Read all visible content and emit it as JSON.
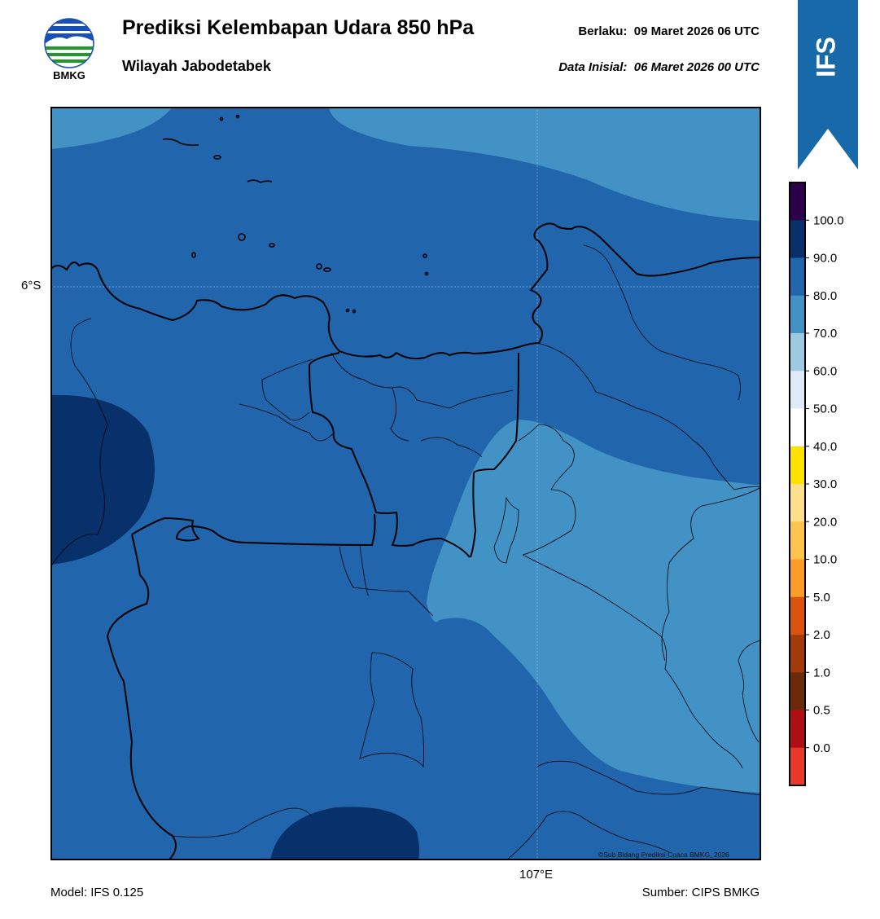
{
  "header": {
    "logo_text": "BMKG",
    "title": "Prediksi Kelembapan Udara 850 hPa",
    "subtitle": "Wilayah Jabodetabek",
    "valid_label": "Berlaku:",
    "valid_time": "09 Maret 2026 06 UTC",
    "init_label": "Data Inisial:",
    "init_time": "06 Maret 2026 00 UTC"
  },
  "ribbon": {
    "text": "IFS",
    "color": "#1769aa"
  },
  "map": {
    "lat_label": "6°S",
    "lon_label": "107°E",
    "copyright": "©Sub Bidang Prediksi Cuaca BMKG, 2026",
    "region_colors": {
      "level_70_80": "#4292c6",
      "level_80_90": "#2166ac",
      "level_90_100": "#08306b"
    }
  },
  "legend": {
    "labels": [
      "100.0",
      "90.0",
      "80.0",
      "70.0",
      "60.0",
      "50.0",
      "40.0",
      "30.0",
      "20.0",
      "10.0",
      "5.0",
      "2.0",
      "1.0",
      "0.5",
      "0.0"
    ],
    "colors": [
      "#2d004b",
      "#08306b",
      "#2166ac",
      "#4292c6",
      "#9ecae1",
      "#deebf7",
      "#ffffff",
      "#ffe100",
      "#ffe08a",
      "#ffc450",
      "#fd9c2b",
      "#d9530c",
      "#a33a0a",
      "#6b2a0a",
      "#b01015",
      "#e8392a"
    ]
  },
  "footer": {
    "model": "Model: IFS 0.125",
    "source": "Sumber: CIPS BMKG"
  }
}
